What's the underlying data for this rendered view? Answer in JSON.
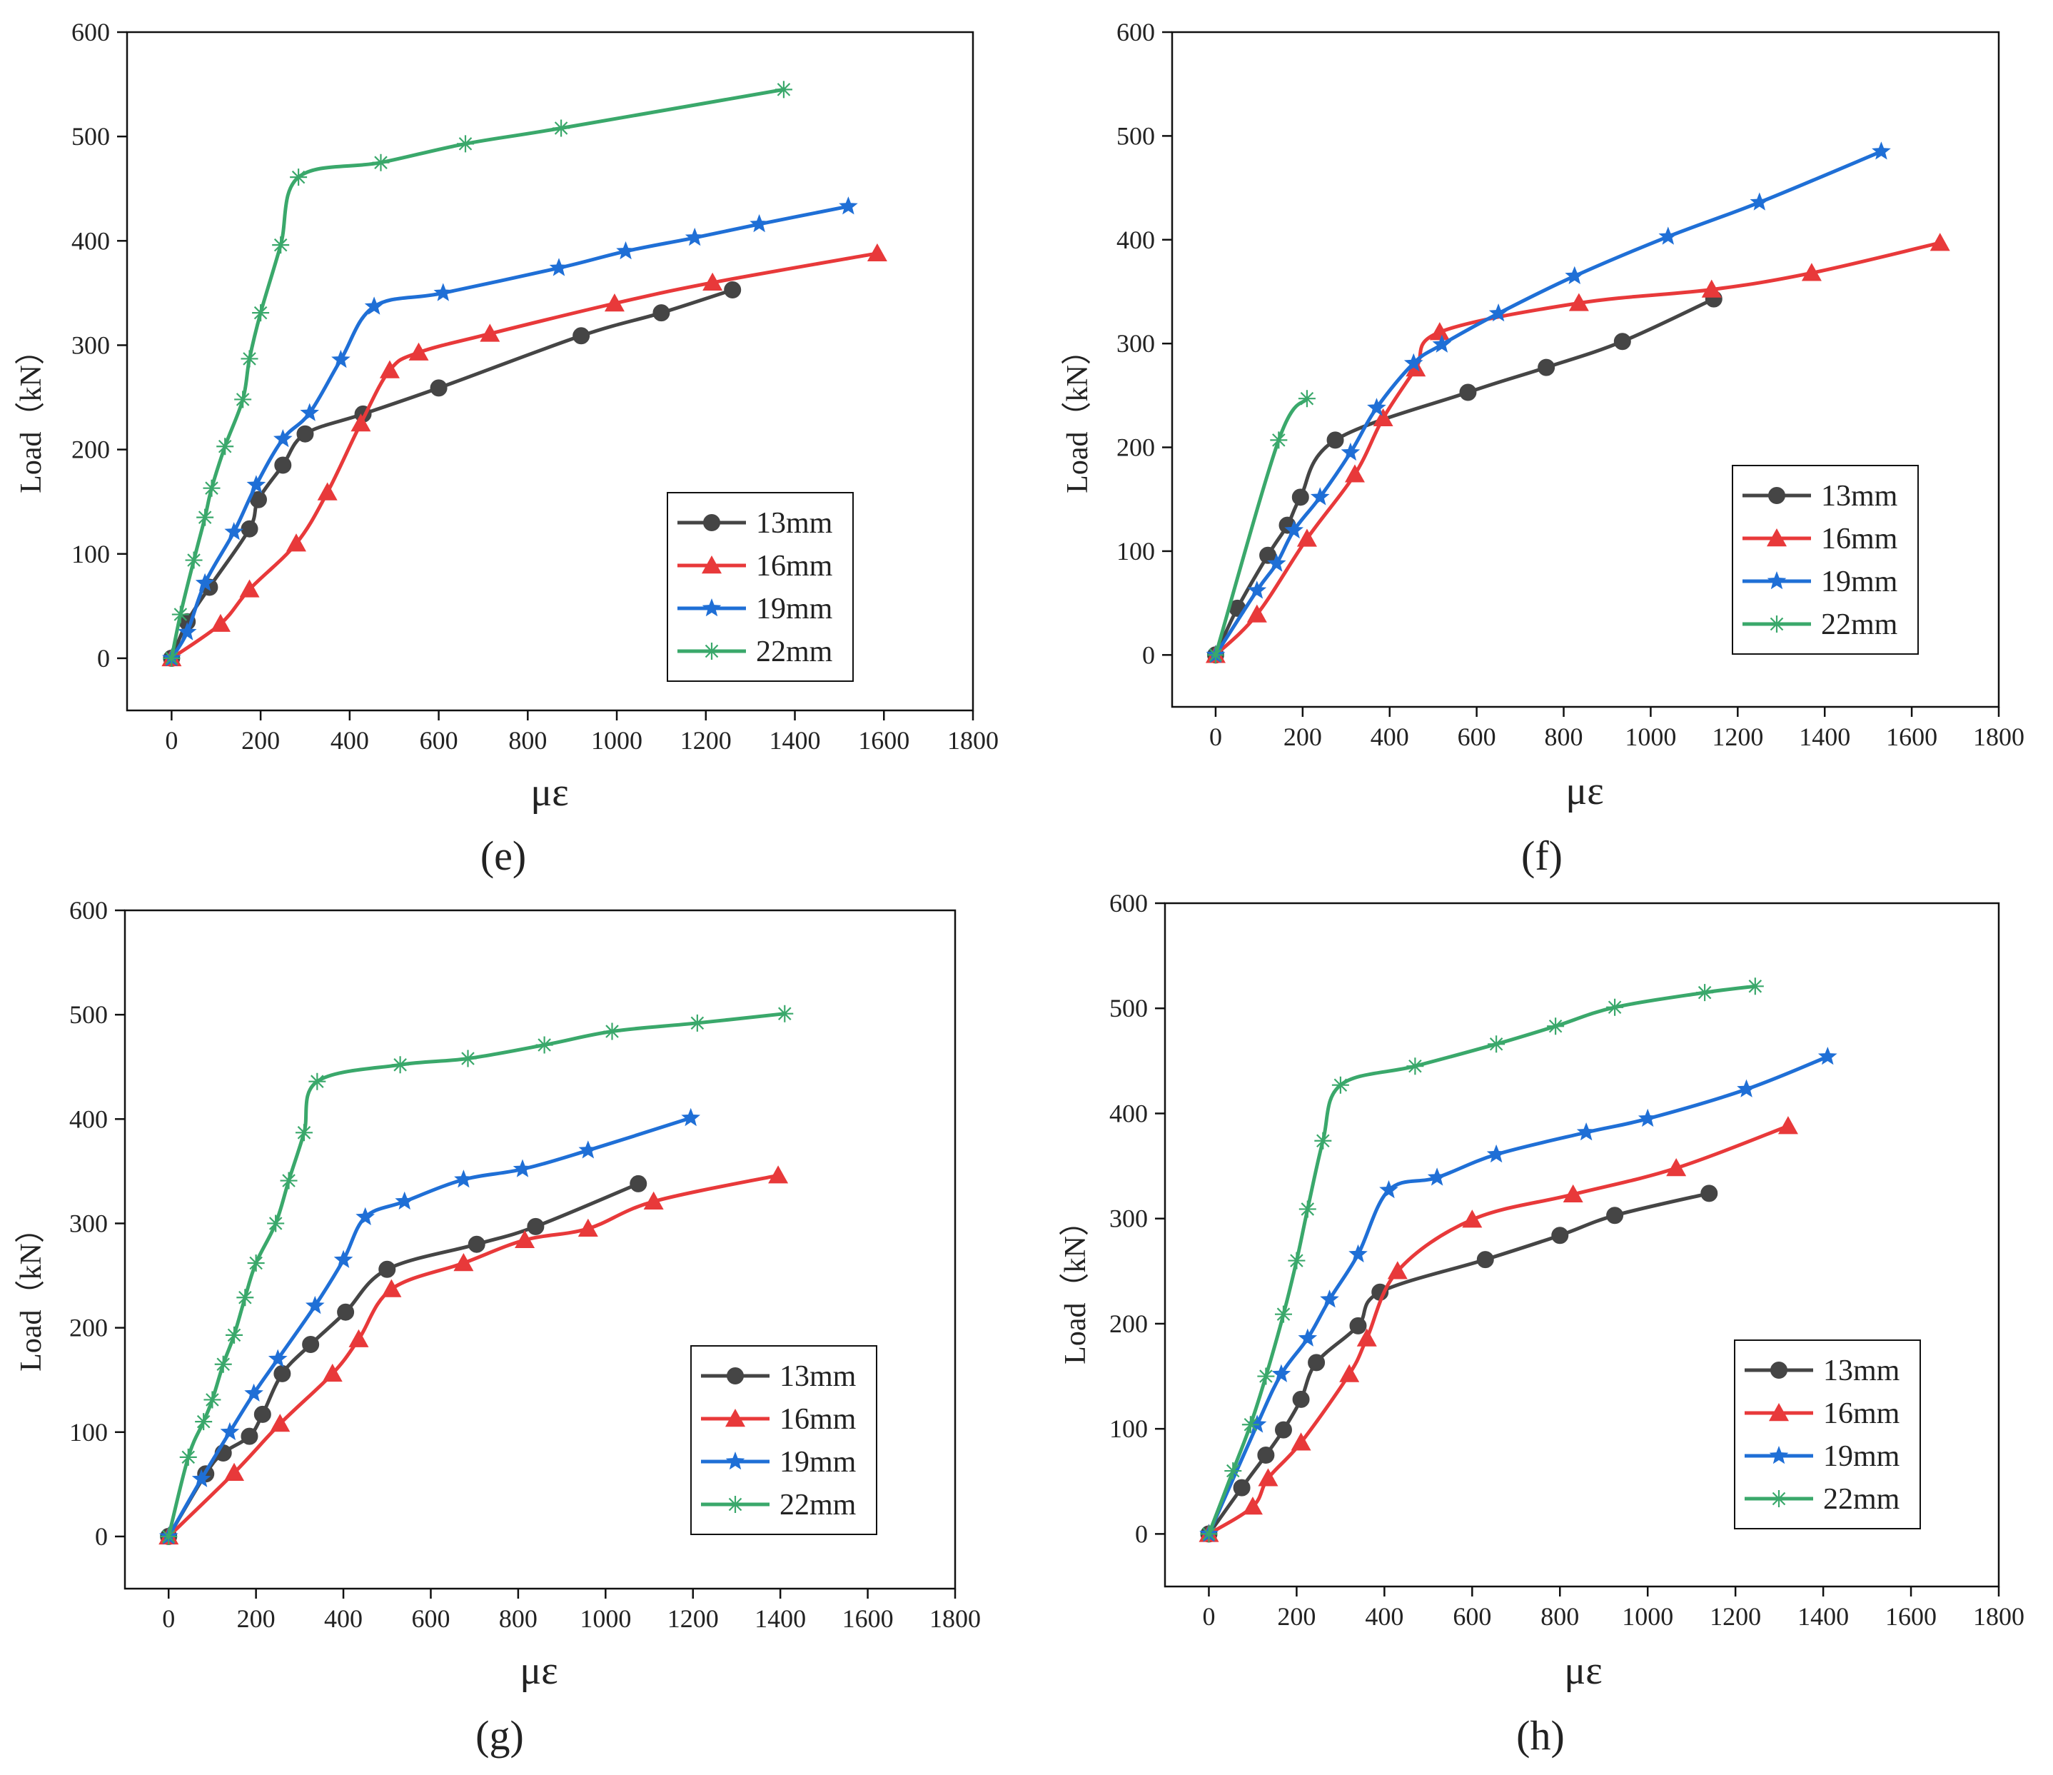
{
  "colors": {
    "13mm": "#454545",
    "16mm": "#e8393a",
    "19mm": "#1f6fd6",
    "22mm": "#3aa86b"
  },
  "chart_data": [
    {
      "type": "line",
      "panel": "e",
      "panel_label": "(e)",
      "xlabel": "με",
      "ylabel": "Load（kN）",
      "xlim": [
        -100,
        1800
      ],
      "ylim": [
        -50,
        600
      ],
      "xticks": [
        0,
        200,
        400,
        600,
        800,
        1000,
        1200,
        1400,
        1600,
        1800
      ],
      "yticks": [
        0,
        100,
        200,
        300,
        400,
        500,
        600
      ],
      "legend": [
        "13mm",
        "16mm",
        "19mm",
        "22mm"
      ],
      "series": [
        {
          "name": "13mm",
          "marker": "circle",
          "x": [
            0,
            35,
            85,
            175,
            195,
            250,
            300,
            430,
            600,
            920,
            1100,
            1260
          ],
          "y": [
            0,
            35,
            68,
            124,
            152,
            185,
            215,
            234,
            259,
            309,
            331,
            353
          ]
        },
        {
          "name": "16mm",
          "marker": "triangle",
          "x": [
            0,
            110,
            175,
            280,
            350,
            425,
            490,
            555,
            715,
            995,
            1215,
            1585
          ],
          "y": [
            0,
            33,
            66,
            110,
            159,
            225,
            276,
            293,
            311,
            340,
            360,
            388
          ]
        },
        {
          "name": "19mm",
          "marker": "star",
          "x": [
            0,
            35,
            75,
            140,
            190,
            250,
            310,
            380,
            455,
            610,
            870,
            1020,
            1175,
            1320,
            1520
          ],
          "y": [
            0,
            25,
            72,
            121,
            166,
            210,
            235,
            286,
            337,
            350,
            374,
            390,
            403,
            416,
            433
          ]
        },
        {
          "name": "22mm",
          "marker": "asterisk",
          "x": [
            0,
            20,
            50,
            75,
            90,
            120,
            160,
            175,
            200,
            245,
            285,
            470,
            660,
            875,
            1375
          ],
          "y": [
            0,
            42,
            94,
            135,
            163,
            203,
            248,
            287,
            331,
            396,
            461,
            475,
            493,
            508,
            545
          ]
        }
      ]
    },
    {
      "type": "line",
      "panel": "f",
      "panel_label": "(f)",
      "xlabel": "με",
      "ylabel": "Load（kN）",
      "xlim": [
        -100,
        1800
      ],
      "ylim": [
        -50,
        600
      ],
      "xticks": [
        0,
        200,
        400,
        600,
        800,
        1000,
        1200,
        1400,
        1600,
        1800
      ],
      "yticks": [
        0,
        100,
        200,
        300,
        400,
        500,
        600
      ],
      "legend": [
        "13mm",
        "16mm",
        "19mm",
        "22mm"
      ],
      "series": [
        {
          "name": "13mm",
          "marker": "circle",
          "x": [
            0,
            50,
            120,
            165,
            195,
            275,
            580,
            760,
            935,
            1145
          ],
          "y": [
            0,
            45,
            96,
            125,
            152,
            207,
            253,
            277,
            302,
            343
          ]
        },
        {
          "name": "16mm",
          "marker": "triangle",
          "x": [
            0,
            95,
            210,
            320,
            385,
            460,
            515,
            835,
            1140,
            1370,
            1665
          ],
          "y": [
            0,
            39,
            112,
            174,
            228,
            276,
            311,
            339,
            352,
            368,
            397
          ]
        },
        {
          "name": "19mm",
          "marker": "star",
          "x": [
            0,
            95,
            140,
            180,
            240,
            310,
            370,
            455,
            520,
            650,
            825,
            1040,
            1250,
            1530
          ],
          "y": [
            0,
            62,
            88,
            120,
            152,
            195,
            238,
            281,
            299,
            329,
            365,
            403,
            436,
            485
          ]
        },
        {
          "name": "22mm",
          "marker": "asterisk",
          "x": [
            0,
            145,
            210
          ],
          "y": [
            0,
            207,
            247
          ]
        }
      ]
    },
    {
      "type": "line",
      "panel": "g",
      "panel_label": "(g)",
      "xlabel": "με",
      "ylabel": "Load（kN）",
      "xlim": [
        -100,
        1800
      ],
      "ylim": [
        -50,
        600
      ],
      "xticks": [
        0,
        200,
        400,
        600,
        800,
        1000,
        1200,
        1400,
        1600,
        1800
      ],
      "yticks": [
        0,
        100,
        200,
        300,
        400,
        500,
        600
      ],
      "legend": [
        "13mm",
        "16mm",
        "19mm",
        "22mm"
      ],
      "series": [
        {
          "name": "13mm",
          "marker": "circle",
          "x": [
            0,
            85,
            125,
            185,
            215,
            260,
            325,
            405,
            500,
            705,
            840,
            1075
          ],
          "y": [
            0,
            60,
            80,
            96,
            117,
            156,
            184,
            215,
            256,
            280,
            297,
            338
          ]
        },
        {
          "name": "16mm",
          "marker": "triangle",
          "x": [
            0,
            150,
            255,
            375,
            435,
            510,
            675,
            815,
            960,
            1110,
            1395
          ],
          "y": [
            0,
            61,
            108,
            156,
            189,
            237,
            262,
            284,
            295,
            321,
            346
          ]
        },
        {
          "name": "19mm",
          "marker": "star",
          "x": [
            0,
            75,
            140,
            195,
            250,
            335,
            400,
            450,
            540,
            675,
            810,
            960,
            1195
          ],
          "y": [
            0,
            55,
            100,
            137,
            170,
            221,
            265,
            306,
            321,
            342,
            352,
            370,
            401
          ]
        },
        {
          "name": "22mm",
          "marker": "asterisk",
          "x": [
            0,
            45,
            80,
            100,
            125,
            150,
            175,
            200,
            245,
            275,
            310,
            340,
            530,
            685,
            860,
            1015,
            1210,
            1410
          ],
          "y": [
            0,
            76,
            110,
            131,
            165,
            193,
            229,
            262,
            300,
            341,
            387,
            436,
            452,
            458,
            471,
            484,
            492,
            501
          ]
        }
      ]
    },
    {
      "type": "line",
      "panel": "h",
      "panel_label": "(h)",
      "xlabel": "με",
      "ylabel": "Load（kN）",
      "xlim": [
        -100,
        1800
      ],
      "ylim": [
        -50,
        600
      ],
      "xticks": [
        0,
        200,
        400,
        600,
        800,
        1000,
        1200,
        1400,
        1600,
        1800
      ],
      "yticks": [
        0,
        100,
        200,
        300,
        400,
        500,
        600
      ],
      "legend": [
        "13mm",
        "16mm",
        "19mm",
        "22mm"
      ],
      "series": [
        {
          "name": "13mm",
          "marker": "circle",
          "x": [
            0,
            75,
            130,
            170,
            210,
            245,
            340,
            390,
            630,
            800,
            925,
            1140
          ],
          "y": [
            0,
            44,
            75,
            99,
            128,
            163,
            198,
            230,
            261,
            284,
            303,
            324
          ]
        },
        {
          "name": "16mm",
          "marker": "triangle",
          "x": [
            0,
            100,
            135,
            210,
            320,
            360,
            430,
            600,
            830,
            1065,
            1320
          ],
          "y": [
            0,
            26,
            53,
            87,
            152,
            186,
            250,
            299,
            323,
            348,
            388
          ]
        },
        {
          "name": "19mm",
          "marker": "star",
          "x": [
            0,
            110,
            165,
            225,
            275,
            340,
            410,
            520,
            655,
            860,
            1000,
            1225,
            1410
          ],
          "y": [
            0,
            104,
            152,
            186,
            223,
            266,
            327,
            339,
            361,
            382,
            395,
            423,
            454
          ]
        },
        {
          "name": "22mm",
          "marker": "asterisk",
          "x": [
            0,
            55,
            95,
            130,
            170,
            200,
            225,
            260,
            300,
            470,
            655,
            790,
            925,
            1130,
            1245
          ],
          "y": [
            0,
            60,
            104,
            150,
            209,
            260,
            309,
            374,
            427,
            445,
            466,
            483,
            501,
            515,
            521
          ]
        }
      ]
    }
  ]
}
